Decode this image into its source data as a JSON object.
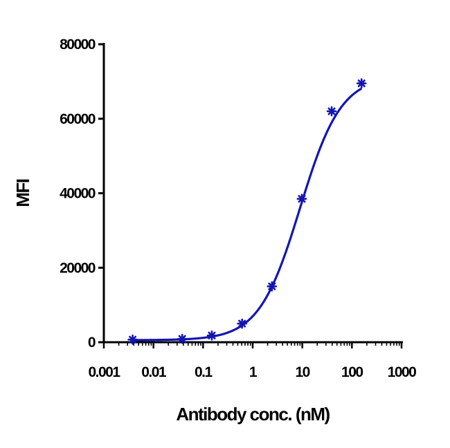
{
  "chart_data": {
    "type": "scatter",
    "title": "",
    "xlabel": "Antibody conc. (nM)",
    "ylabel": "MFI",
    "xscale": "log",
    "xlim": [
      0.001,
      1000
    ],
    "ylim": [
      0,
      80000
    ],
    "x_ticks": [
      "0.001",
      "0.01",
      "0.1",
      "1",
      "10",
      "100",
      "1000"
    ],
    "y_ticks": [
      "0",
      "20000",
      "40000",
      "60000",
      "80000"
    ],
    "grid": false,
    "legend": "none",
    "series": [
      {
        "x": [
          0.0038,
          0.038,
          0.15,
          0.61,
          2.44,
          9.77,
          39.06,
          156.25
        ],
        "y": [
          700,
          900,
          1800,
          5000,
          15000,
          38500,
          62000,
          69500
        ],
        "fit": "sigmoidal",
        "color": "#1414b4",
        "marker": "asterisk"
      }
    ]
  }
}
